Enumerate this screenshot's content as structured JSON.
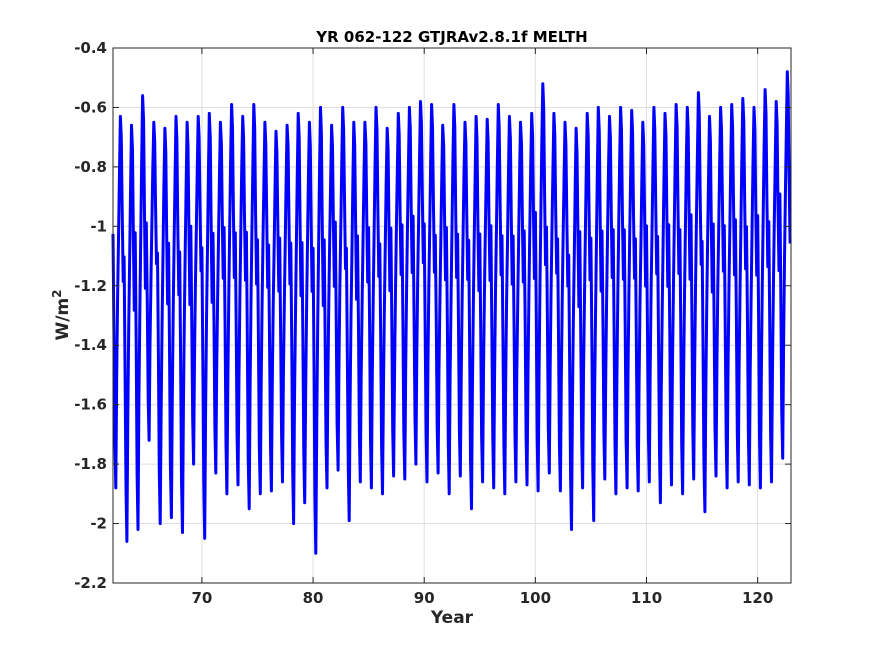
{
  "chart_data": {
    "type": "line",
    "title": "YR 062-122 GTJRAv2.8.1f MELTH",
    "xlabel": "Year",
    "ylabel_base": "W/m",
    "ylabel_sup": "2",
    "xlim": [
      62,
      123
    ],
    "ylim": [
      -2.2,
      -0.4
    ],
    "xticks": [
      70,
      80,
      90,
      100,
      110,
      120
    ],
    "xtick_labels": [
      "70",
      "80",
      "90",
      "100",
      "110",
      "120"
    ],
    "yticks": [
      -2.2,
      -2,
      -1.8,
      -1.6,
      -1.4,
      -1.2,
      -1,
      -0.8,
      -0.6,
      -0.4
    ],
    "ytick_labels": [
      "-2.2",
      "-2",
      "-1.8",
      "-1.6",
      "-1.4",
      "-1.2",
      "-1",
      "-0.8",
      "-0.6",
      "-0.4"
    ],
    "grid": true,
    "line_color": "#0000ff",
    "samples_per_year": 12,
    "series": [
      {
        "name": "",
        "annual_cycle": [
          -1.05,
          -1.35,
          -1.7,
          -1.85,
          -1.5,
          -1.25,
          -1.05,
          -0.85,
          -0.68,
          -0.75,
          -1.0,
          -1.2
        ],
        "yearly_max": [
          -0.63,
          -0.66,
          -0.56,
          -0.65,
          -0.67,
          -0.63,
          -0.65,
          -0.63,
          -0.62,
          -0.65,
          -0.59,
          -0.63,
          -0.59,
          -0.65,
          -0.68,
          -0.66,
          -0.62,
          -0.65,
          -0.6,
          -0.66,
          -0.6,
          -0.65,
          -0.65,
          -0.6,
          -0.67,
          -0.62,
          -0.6,
          -0.58,
          -0.59,
          -0.66,
          -0.59,
          -0.65,
          -0.63,
          -0.64,
          -0.59,
          -0.63,
          -0.65,
          -0.62,
          -0.52,
          -0.62,
          -0.65,
          -0.67,
          -0.62,
          -0.6,
          -0.63,
          -0.6,
          -0.61,
          -0.65,
          -0.6,
          -0.62,
          -0.59,
          -0.6,
          -0.55,
          -0.63,
          -0.6,
          -0.59,
          -0.57,
          -0.6,
          -0.54,
          -0.58,
          -0.48
        ],
        "yearly_min": [
          -1.88,
          -2.06,
          -2.02,
          -1.72,
          -2.0,
          -1.98,
          -2.03,
          -1.8,
          -2.05,
          -1.83,
          -1.9,
          -1.87,
          -1.95,
          -1.9,
          -1.89,
          -1.86,
          -2.0,
          -1.93,
          -2.1,
          -1.88,
          -1.82,
          -1.99,
          -1.86,
          -1.88,
          -1.9,
          -1.84,
          -1.85,
          -1.8,
          -1.86,
          -1.83,
          -1.9,
          -1.84,
          -1.95,
          -1.86,
          -1.88,
          -1.9,
          -1.86,
          -1.87,
          -1.89,
          -1.83,
          -1.89,
          -2.02,
          -1.88,
          -1.99,
          -1.85,
          -1.9,
          -1.88,
          -1.89,
          -1.86,
          -1.93,
          -1.87,
          -1.9,
          -1.85,
          -1.96,
          -1.84,
          -1.88,
          -1.86,
          -1.87,
          -1.88,
          -1.86,
          -1.78
        ]
      }
    ]
  }
}
